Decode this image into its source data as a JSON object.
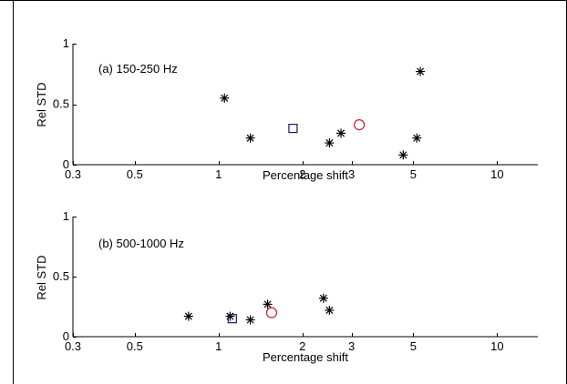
{
  "chart_data": [
    {
      "type": "scatter",
      "annotation": "(a) 150-250 Hz",
      "xlabel": "Percentage shift",
      "ylabel": "Rel STD",
      "xscale": "log",
      "xlim": [
        0.3,
        14
      ],
      "ylim": [
        0,
        1
      ],
      "xticks": [
        "0.3",
        "0.5",
        "1",
        "2",
        "3",
        "5",
        "10"
      ],
      "xtick_values": [
        0.3,
        0.5,
        1,
        2,
        3,
        5,
        10
      ],
      "yticks": [
        "0",
        "0.5",
        "1"
      ],
      "ytick_values": [
        0,
        0.5,
        1
      ],
      "grid": false,
      "series": [
        {
          "marker": "asterisk",
          "color": "#000000",
          "points": [
            [
              1.05,
              0.55
            ],
            [
              1.3,
              0.22
            ],
            [
              2.5,
              0.18
            ],
            [
              2.75,
              0.26
            ],
            [
              4.6,
              0.08
            ],
            [
              5.15,
              0.22
            ],
            [
              5.3,
              0.77
            ]
          ]
        },
        {
          "marker": "square",
          "color": "#1a1a66",
          "points": [
            [
              1.85,
              0.3
            ]
          ]
        },
        {
          "marker": "circle",
          "color": "#cc1a33",
          "points": [
            [
              3.2,
              0.33
            ]
          ]
        }
      ]
    },
    {
      "type": "scatter",
      "annotation": "(b) 500-1000 Hz",
      "xlabel": "Percentage shift",
      "ylabel": "Rel STD",
      "xscale": "log",
      "xlim": [
        0.3,
        14
      ],
      "ylim": [
        0,
        1
      ],
      "xticks": [
        "0.3",
        "0.5",
        "1",
        "2",
        "3",
        "5",
        "10"
      ],
      "xtick_values": [
        0.3,
        0.5,
        1,
        2,
        3,
        5,
        10
      ],
      "yticks": [
        "0",
        "0.5",
        "1"
      ],
      "ytick_values": [
        0,
        0.5,
        1
      ],
      "grid": false,
      "series": [
        {
          "marker": "asterisk",
          "color": "#000000",
          "points": [
            [
              0.78,
              0.17
            ],
            [
              1.1,
              0.17
            ],
            [
              1.3,
              0.14
            ],
            [
              1.5,
              0.27
            ],
            [
              2.38,
              0.32
            ],
            [
              2.5,
              0.22
            ]
          ]
        },
        {
          "marker": "square",
          "color": "#1a1a66",
          "points": [
            [
              1.12,
              0.15
            ]
          ]
        },
        {
          "marker": "circle",
          "color": "#cc1a33",
          "points": [
            [
              1.55,
              0.2
            ]
          ]
        }
      ]
    }
  ]
}
